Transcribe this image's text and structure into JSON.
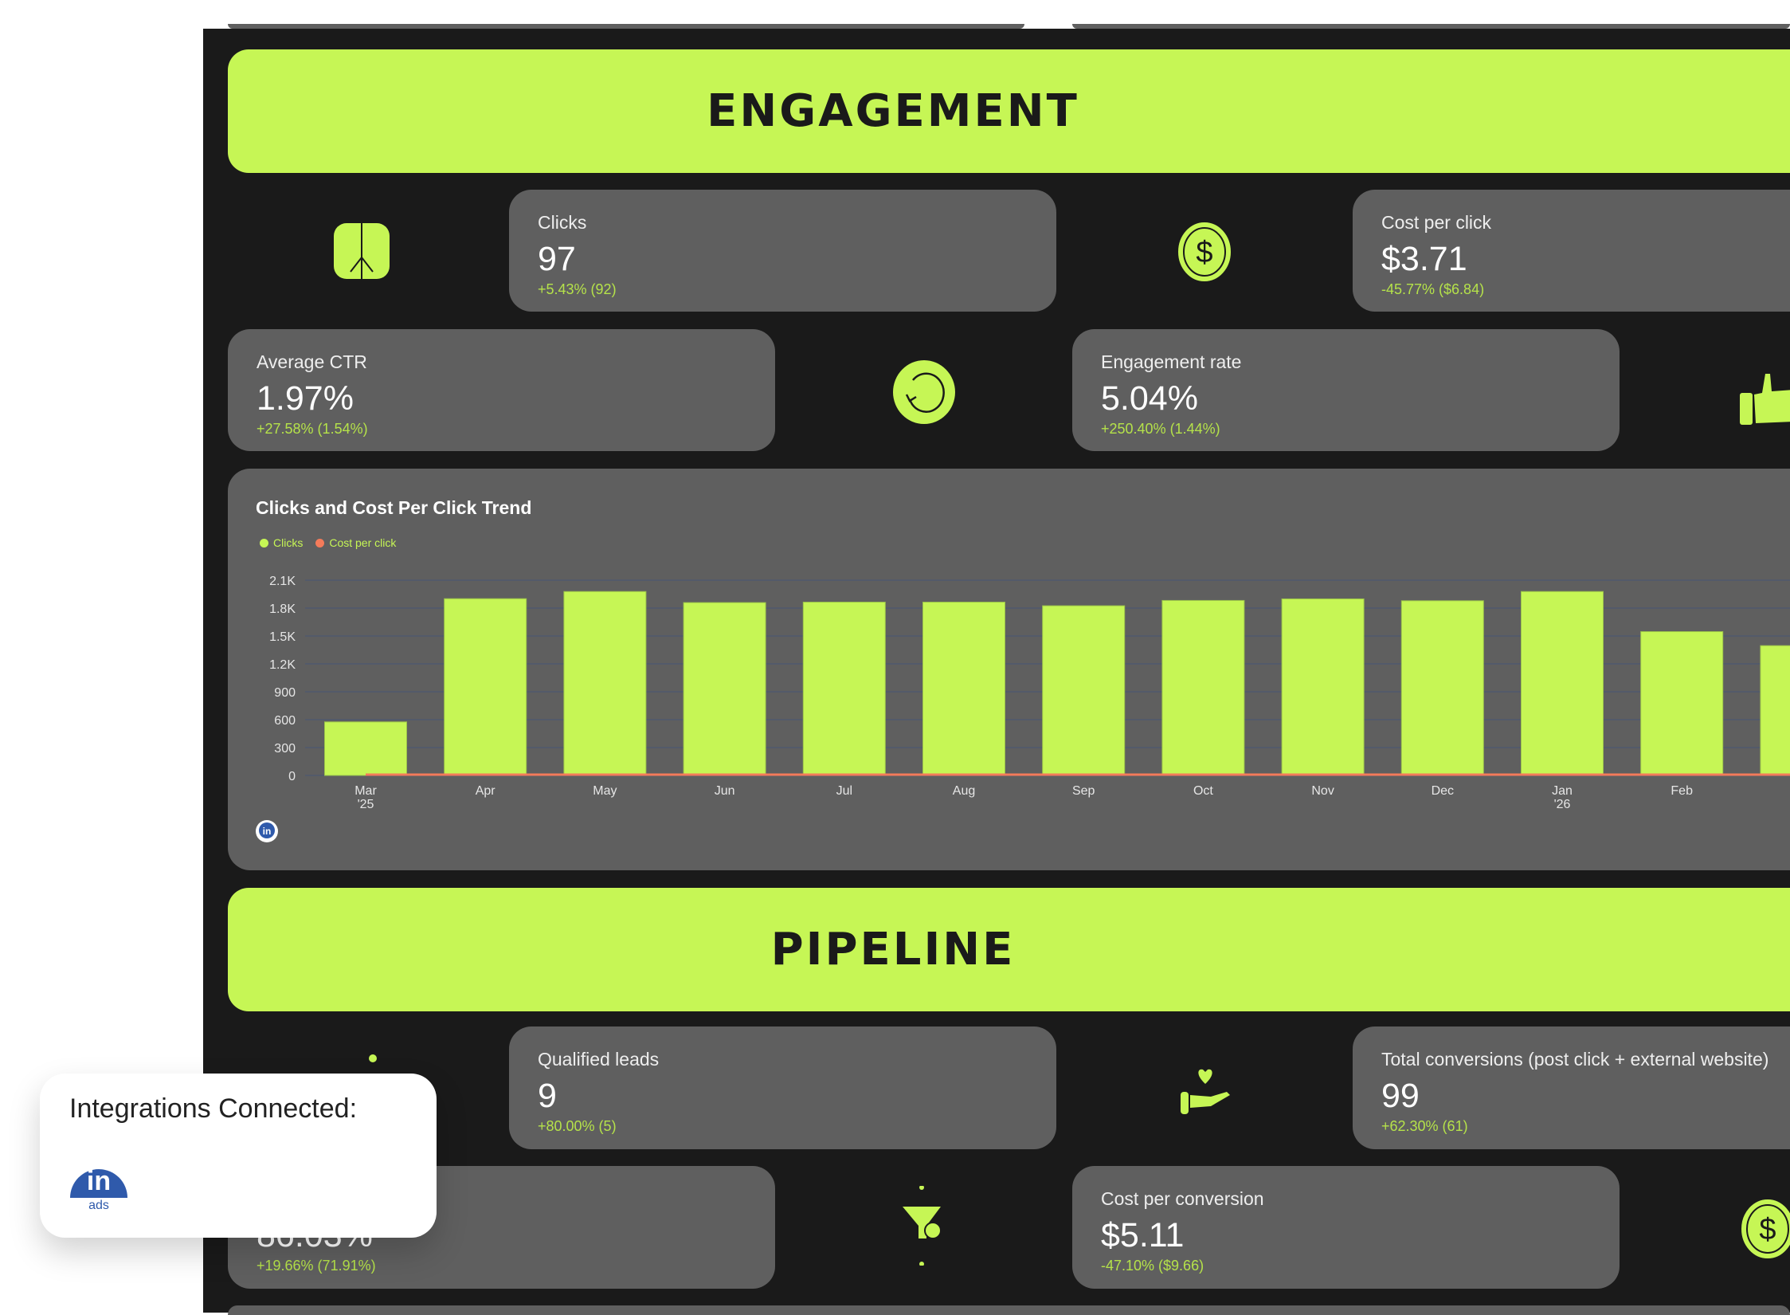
{
  "sections": {
    "engagement_title": "ENGAGEMENT",
    "pipeline_title": "PIPELINE"
  },
  "engagement": {
    "clicks": {
      "label": "Clicks",
      "value": "97",
      "change": "+5.43% (92)",
      "icon": "cursor-click-icon"
    },
    "cpc": {
      "label": "Cost per click",
      "value": "$3.71",
      "change": "-45.77% ($6.84)",
      "icon": "dollar-coin-icon"
    },
    "ctr": {
      "label": "Average CTR",
      "value": "1.97%",
      "change": "+27.58% (1.54%)",
      "icon": "refresh-icon"
    },
    "engagement_rate": {
      "label": "Engagement rate",
      "value": "5.04%",
      "change": "+250.40% (1.44%)",
      "icon": "thumbs-up-icon"
    }
  },
  "pipeline": {
    "qualified_leads": {
      "label": "Qualified leads",
      "value": "9",
      "change": "+80.00% (5)"
    },
    "total_conversions": {
      "label": "Total conversions (post click + external website)",
      "value": "99",
      "change": "+62.30% (61)",
      "icon": "hand-heart-icon"
    },
    "hidden_metric": {
      "value": "86.03%",
      "change": "+19.66% (71.91%)",
      "icon": "funnel-icon"
    },
    "cost_per_conversion": {
      "label": "Cost per conversion",
      "value": "$5.11",
      "change": "-47.10% ($9.66)",
      "icon": "dollar-coin-icon"
    }
  },
  "chart_data": {
    "type": "bar",
    "title": "Clicks and Cost Per Click Trend",
    "legend": [
      "Clicks",
      "Cost per click"
    ],
    "legend_placement": "top-left",
    "grid": true,
    "categories": [
      "Mar '25",
      "Apr",
      "May",
      "Jun",
      "Jul",
      "Aug",
      "Sep",
      "Oct",
      "Nov",
      "Dec",
      "Jan '26",
      "Feb",
      ""
    ],
    "series": [
      {
        "name": "Clicks",
        "type": "bar",
        "color": "#c6f655",
        "values": [
          576,
          1901,
          1978,
          1859,
          1864,
          1864,
          1825,
          1882,
          1899,
          1879,
          1978,
          1547,
          1396
        ]
      },
      {
        "name": "Cost per click",
        "type": "line",
        "color": "#f47b5a",
        "values": [
          3.7,
          3.7,
          3.7,
          3.7,
          3.7,
          3.7,
          3.7,
          3.7,
          3.7,
          3.7,
          3.7,
          3.7,
          3.7
        ]
      }
    ],
    "yticks": [
      "0",
      "300",
      "600",
      "900",
      "1.2K",
      "1.5K",
      "1.8K",
      "2.1K"
    ],
    "ylim": [
      0,
      2100
    ]
  },
  "integrations": {
    "title": "Integrations Connected:",
    "linkedin_text": "in",
    "linkedin_sub": "ads"
  },
  "colors": {
    "accent": "#c6f655",
    "background": "#1a1a1a",
    "card": "#5f5f5f",
    "negative_line": "#f47b5a"
  }
}
